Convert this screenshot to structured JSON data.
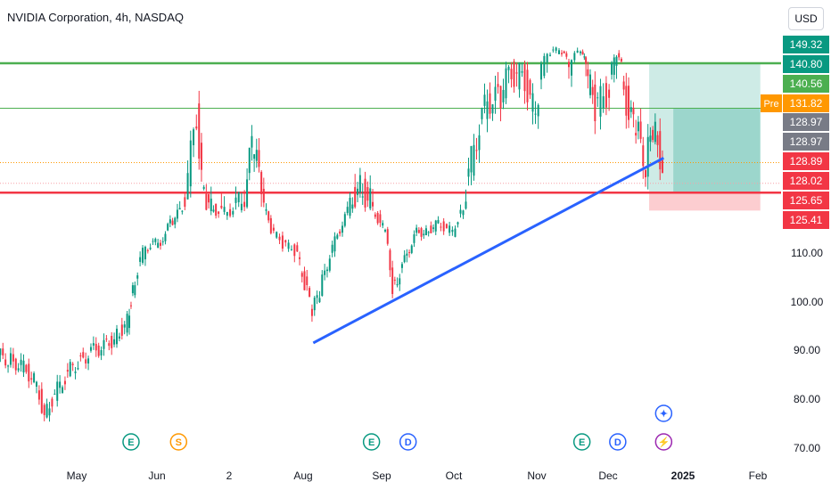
{
  "header": {
    "title": "NVIDIA Corporation, 4h, NASDAQ",
    "currency": "USD"
  },
  "chart_data": {
    "type": "candlestick",
    "y_axis": {
      "ticks": [
        70,
        80,
        90,
        100,
        110
      ],
      "tick_labels": [
        "70.00",
        "80.00",
        "90.00",
        "100.00",
        "110.00"
      ],
      "range": [
        68,
        152
      ]
    },
    "x_axis": {
      "labels": [
        "May",
        "Jun",
        "2",
        "Aug",
        "Sep",
        "Oct",
        "Nov",
        "Dec",
        "2025",
        "Feb"
      ],
      "label_dates": [
        "2024-05-01",
        "2024-06-01",
        "2024-07-01",
        "2024-08-01",
        "2024-09-01",
        "2024-10-01",
        "2024-11-01",
        "2024-12-01",
        "2025-01-01",
        "2025-02-01"
      ]
    },
    "price_labels": [
      {
        "value": 149.32,
        "text": "149.32",
        "color": "#089981"
      },
      {
        "value": 140.8,
        "text": "140.80",
        "color": "#089981"
      },
      {
        "value": 140.56,
        "text": "140.56",
        "color": "#4caf50"
      },
      {
        "value": 131.82,
        "text": "131.82",
        "color": "#ff9800",
        "tag": "Pre"
      },
      {
        "value": 128.97,
        "text": "128.97",
        "color": "#787b86"
      },
      {
        "value": 128.97,
        "text": "128.97",
        "color": "#787b86"
      },
      {
        "value": 128.89,
        "text": "128.89",
        "color": "#f23645"
      },
      {
        "value": 128.02,
        "text": "128.02",
        "color": "#f23645"
      },
      {
        "value": 125.65,
        "text": "125.65",
        "color": "#f23645"
      },
      {
        "value": 125.41,
        "text": "125.41",
        "color": "#f23645"
      }
    ],
    "horizontal_levels": [
      {
        "value": 140.8,
        "color": "#4caf50",
        "style": "solid-thick"
      },
      {
        "value": 136.0,
        "color": "#4caf50",
        "style": "solid-thin"
      },
      {
        "value": 130.2,
        "color": "#ff9800",
        "style": "dotted"
      },
      {
        "value": 128.0,
        "color": "#f7a1a8",
        "style": "dotted"
      },
      {
        "value": 127.0,
        "color": "#f23645",
        "style": "solid-thick"
      }
    ],
    "trendline": {
      "from": {
        "date": "2024-08-05",
        "value": 91.5
      },
      "to": {
        "date": "2024-12-24",
        "value": 130.7
      },
      "color": "#2962ff"
    },
    "position_tool": {
      "start_date": "2024-12-18",
      "end_date": "2025-02-02",
      "entry": 127.0,
      "target": 140.8,
      "stop": 124.2,
      "profit_color": "#089981",
      "loss_color": "#f23645"
    },
    "series": [
      {
        "date": "2024-04-01",
        "value": 89
      },
      {
        "date": "2024-04-05",
        "value": 88
      },
      {
        "date": "2024-04-10",
        "value": 87
      },
      {
        "date": "2024-04-15",
        "value": 84
      },
      {
        "date": "2024-04-19",
        "value": 77
      },
      {
        "date": "2024-04-24",
        "value": 82
      },
      {
        "date": "2024-04-29",
        "value": 86
      },
      {
        "date": "2024-05-03",
        "value": 88
      },
      {
        "date": "2024-05-08",
        "value": 90
      },
      {
        "date": "2024-05-13",
        "value": 91
      },
      {
        "date": "2024-05-17",
        "value": 93
      },
      {
        "date": "2024-05-21",
        "value": 96
      },
      {
        "date": "2024-05-23",
        "value": 103
      },
      {
        "date": "2024-05-28",
        "value": 112
      },
      {
        "date": "2024-06-03",
        "value": 114
      },
      {
        "date": "2024-06-07",
        "value": 120
      },
      {
        "date": "2024-06-12",
        "value": 125
      },
      {
        "date": "2024-06-18",
        "value": 135
      },
      {
        "date": "2024-06-21",
        "value": 126
      },
      {
        "date": "2024-06-26",
        "value": 124
      },
      {
        "date": "2024-07-02",
        "value": 124
      },
      {
        "date": "2024-07-08",
        "value": 127
      },
      {
        "date": "2024-07-11",
        "value": 132
      },
      {
        "date": "2024-07-15",
        "value": 128
      },
      {
        "date": "2024-07-19",
        "value": 118
      },
      {
        "date": "2024-07-24",
        "value": 113
      },
      {
        "date": "2024-07-29",
        "value": 111
      },
      {
        "date": "2024-08-02",
        "value": 104
      },
      {
        "date": "2024-08-05",
        "value": 98
      },
      {
        "date": "2024-08-08",
        "value": 102
      },
      {
        "date": "2024-08-13",
        "value": 112
      },
      {
        "date": "2024-08-19",
        "value": 124
      },
      {
        "date": "2024-08-23",
        "value": 128
      },
      {
        "date": "2024-08-28",
        "value": 126
      },
      {
        "date": "2024-09-03",
        "value": 117
      },
      {
        "date": "2024-09-06",
        "value": 103
      },
      {
        "date": "2024-09-11",
        "value": 108
      },
      {
        "date": "2024-09-16",
        "value": 117
      },
      {
        "date": "2024-09-20",
        "value": 117
      },
      {
        "date": "2024-09-25",
        "value": 120
      },
      {
        "date": "2024-10-01",
        "value": 117
      },
      {
        "date": "2024-10-04",
        "value": 124
      },
      {
        "date": "2024-10-09",
        "value": 132
      },
      {
        "date": "2024-10-14",
        "value": 137
      },
      {
        "date": "2024-10-18",
        "value": 137
      },
      {
        "date": "2024-10-23",
        "value": 140
      },
      {
        "date": "2024-10-28",
        "value": 139
      },
      {
        "date": "2024-11-01",
        "value": 135
      },
      {
        "date": "2024-11-06",
        "value": 145
      },
      {
        "date": "2024-11-11",
        "value": 147
      },
      {
        "date": "2024-11-15",
        "value": 141
      },
      {
        "date": "2024-11-20",
        "value": 147
      },
      {
        "date": "2024-11-22",
        "value": 140
      },
      {
        "date": "2024-11-26",
        "value": 136
      },
      {
        "date": "2024-12-02",
        "value": 138
      },
      {
        "date": "2024-12-05",
        "value": 144
      },
      {
        "date": "2024-12-10",
        "value": 135
      },
      {
        "date": "2024-12-13",
        "value": 134
      },
      {
        "date": "2024-12-17",
        "value": 130
      },
      {
        "date": "2024-12-20",
        "value": 134
      },
      {
        "date": "2024-12-24",
        "value": 130
      }
    ],
    "events": [
      {
        "date": "2024-05-22",
        "symbol": "E",
        "color": "#089981"
      },
      {
        "date": "2024-06-10",
        "symbol": "S",
        "color": "#ff9800"
      },
      {
        "date": "2024-08-28",
        "symbol": "E",
        "color": "#089981"
      },
      {
        "date": "2024-09-12",
        "symbol": "D",
        "color": "#2962ff"
      },
      {
        "date": "2024-11-20",
        "symbol": "E",
        "color": "#089981"
      },
      {
        "date": "2024-12-05",
        "symbol": "D",
        "color": "#2962ff"
      },
      {
        "date": "2024-12-24",
        "symbol": "⚡",
        "color": "#9c27b0"
      },
      {
        "date": "2024-12-24",
        "symbol": "✦",
        "color": "#2962ff",
        "row": 2
      }
    ]
  }
}
